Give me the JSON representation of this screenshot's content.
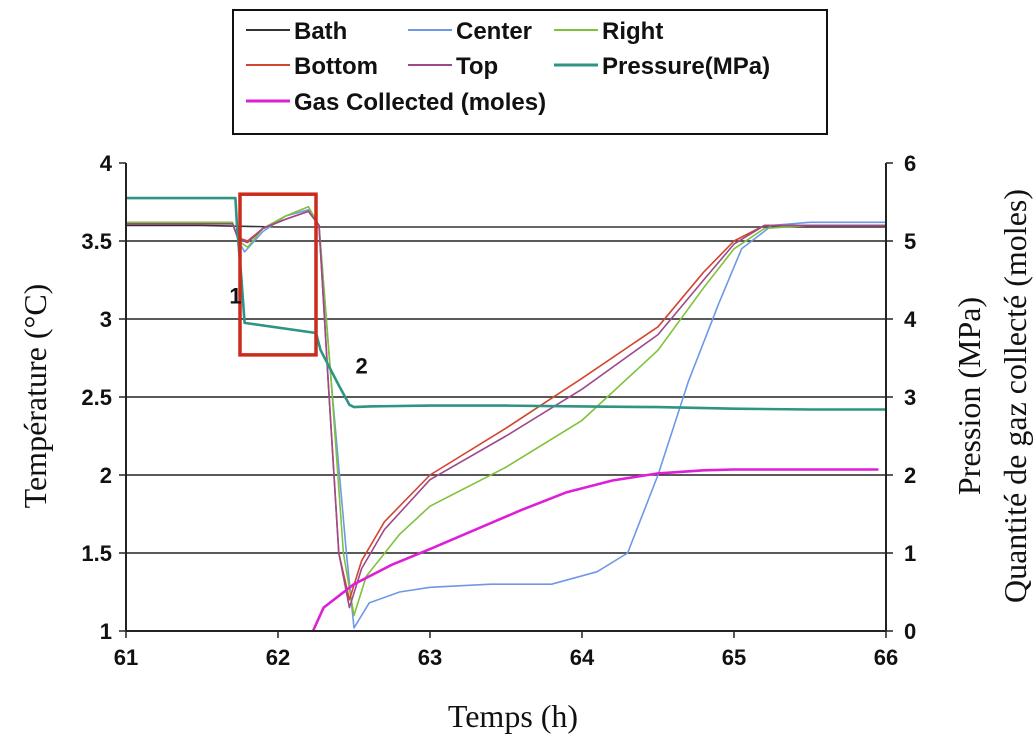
{
  "chart_data": {
    "type": "line",
    "xlabel": "Temps (h)",
    "ylabel": "Température (°C)",
    "y2label_line1": "Pression (MPa)",
    "y2label_line2": "Quantité de gaz collecté (moles)",
    "xlim": [
      61,
      66
    ],
    "ylim": [
      1,
      4
    ],
    "y2lim": [
      0,
      6
    ],
    "xticks": [
      "61",
      "62",
      "63",
      "64",
      "65",
      "66"
    ],
    "yticks": [
      "1",
      "1.5",
      "2",
      "2.5",
      "3",
      "3.5",
      "4"
    ],
    "y2ticks": [
      "0",
      "1",
      "2",
      "3",
      "4",
      "5",
      "6"
    ],
    "grid": "horizontal",
    "legend_position": "top",
    "annotations": [
      {
        "text": "1",
        "x": 61.72,
        "y": 3.1
      },
      {
        "text": "2",
        "x": 62.55,
        "y": 2.65
      }
    ],
    "highlight_box": {
      "x": [
        61.75,
        62.25
      ],
      "y": [
        2.77,
        3.8
      ],
      "color": "#cc2a1a"
    },
    "series": [
      {
        "name": "Bath",
        "color": "#333333",
        "axis": "left",
        "x": [
          61,
          61.5,
          62,
          62.5,
          63,
          63.5,
          64,
          64.5,
          65,
          65.5,
          66
        ],
        "y": [
          3.6,
          3.6,
          3.59,
          3.59,
          3.59,
          3.59,
          3.59,
          3.59,
          3.59,
          3.59,
          3.59
        ]
      },
      {
        "name": "Center",
        "color": "#6f98e8",
        "axis": "left",
        "x": [
          61,
          61.7,
          61.74,
          61.78,
          61.9,
          62.05,
          62.2,
          62.27,
          62.35,
          62.45,
          62.5,
          62.6,
          62.8,
          63,
          63.4,
          63.8,
          64.1,
          64.3,
          64.5,
          64.7,
          64.9,
          65.05,
          65.25,
          65.5,
          66
        ],
        "y": [
          3.62,
          3.62,
          3.5,
          3.43,
          3.56,
          3.66,
          3.7,
          3.6,
          2.6,
          1.5,
          1.02,
          1.18,
          1.25,
          1.28,
          1.3,
          1.3,
          1.38,
          1.5,
          2.0,
          2.6,
          3.1,
          3.45,
          3.6,
          3.62,
          3.62
        ]
      },
      {
        "name": "Right",
        "color": "#7ec23a",
        "axis": "left",
        "x": [
          61,
          61.7,
          61.74,
          61.8,
          61.9,
          62.05,
          62.2,
          62.27,
          62.35,
          62.43,
          62.5,
          62.58,
          62.8,
          63,
          63.5,
          64,
          64.5,
          64.8,
          65,
          65.2,
          65.5,
          66
        ],
        "y": [
          3.62,
          3.62,
          3.5,
          3.46,
          3.58,
          3.66,
          3.72,
          3.6,
          2.6,
          1.5,
          1.1,
          1.35,
          1.62,
          1.8,
          2.05,
          2.35,
          2.8,
          3.2,
          3.45,
          3.58,
          3.6,
          3.6
        ]
      },
      {
        "name": "Bottom",
        "color": "#d2452e",
        "axis": "left",
        "x": [
          61,
          61.7,
          61.74,
          61.8,
          61.9,
          62.05,
          62.2,
          62.27,
          62.33,
          62.4,
          62.47,
          62.55,
          62.7,
          63,
          63.5,
          64,
          64.5,
          64.8,
          65,
          65.2,
          65.5,
          66
        ],
        "y": [
          3.61,
          3.61,
          3.52,
          3.5,
          3.58,
          3.64,
          3.69,
          3.6,
          2.6,
          1.5,
          1.2,
          1.45,
          1.7,
          2.0,
          2.3,
          2.62,
          2.95,
          3.3,
          3.5,
          3.6,
          3.6,
          3.6
        ]
      },
      {
        "name": "Top",
        "color": "#9c4a8c",
        "axis": "left",
        "x": [
          61,
          61.7,
          61.74,
          61.8,
          61.9,
          62.05,
          62.2,
          62.27,
          62.33,
          62.4,
          62.47,
          62.55,
          62.7,
          63,
          63.5,
          64,
          64.5,
          64.8,
          65,
          65.2,
          65.5,
          66
        ],
        "y": [
          3.61,
          3.61,
          3.51,
          3.49,
          3.58,
          3.64,
          3.69,
          3.6,
          2.6,
          1.5,
          1.15,
          1.4,
          1.65,
          1.97,
          2.25,
          2.55,
          2.9,
          3.25,
          3.48,
          3.6,
          3.6,
          3.6
        ]
      },
      {
        "name": "Pressure(MPa)",
        "color": "#2e9484",
        "axis": "right",
        "x": [
          61,
          61.72,
          61.73,
          61.76,
          61.78,
          62.25,
          62.28,
          62.4,
          62.47,
          62.5,
          62.6,
          63,
          63.5,
          64,
          64.5,
          65,
          65.5,
          66
        ],
        "y": [
          5.55,
          5.55,
          5.2,
          4.5,
          3.95,
          3.82,
          3.6,
          3.15,
          2.9,
          2.87,
          2.88,
          2.89,
          2.89,
          2.88,
          2.87,
          2.85,
          2.84,
          2.84
        ]
      },
      {
        "name": "Gas Collected (moles)",
        "color": "#dd1fd6",
        "axis": "right",
        "x": [
          62.23,
          62.3,
          62.5,
          62.75,
          63,
          63.3,
          63.6,
          63.9,
          64.2,
          64.5,
          64.8,
          65,
          65.5,
          65.95
        ],
        "y": [
          0,
          0.3,
          0.6,
          0.85,
          1.05,
          1.3,
          1.55,
          1.78,
          1.93,
          2.02,
          2.06,
          2.07,
          2.07,
          2.07
        ]
      }
    ]
  }
}
